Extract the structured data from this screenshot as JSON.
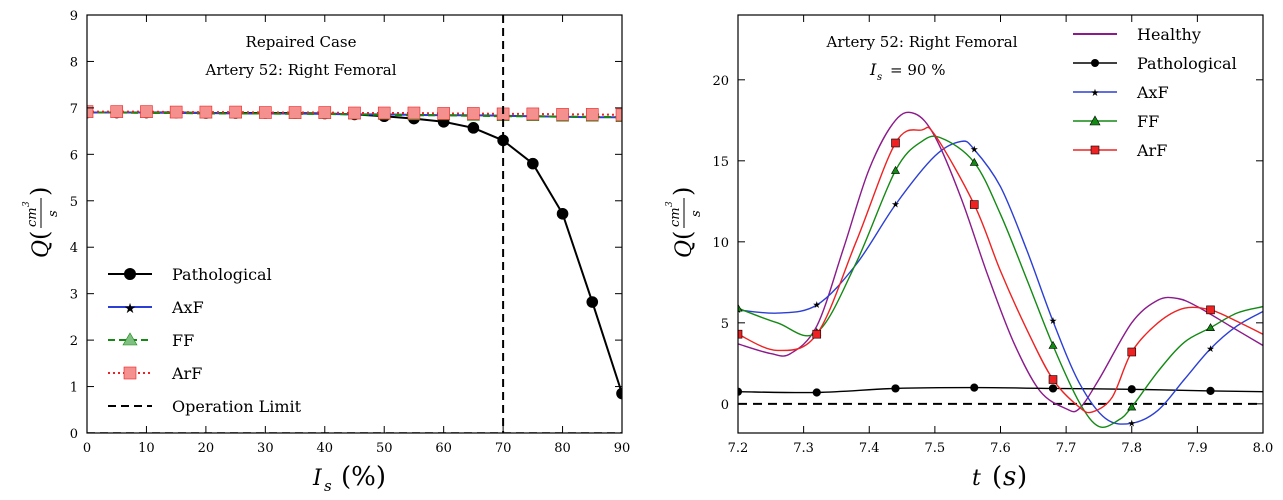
{
  "chart_data": [
    {
      "type": "line",
      "annotation": [
        "Repaired Case",
        "Artery 52: Right Femoral"
      ],
      "xlabel": "I_s (%)",
      "ylabel": "Q (cm^3/s)",
      "xlim": [
        0,
        90
      ],
      "ylim": [
        0,
        9
      ],
      "x_ticks": [
        "0",
        "10",
        "20",
        "30",
        "40",
        "50",
        "60",
        "70",
        "80",
        "90"
      ],
      "y_ticks": [
        "0",
        "1",
        "2",
        "3",
        "4",
        "5",
        "6",
        "7",
        "8",
        "9"
      ],
      "grid": false,
      "legend_position": "lower-left",
      "x": [
        0,
        5,
        10,
        15,
        20,
        25,
        30,
        35,
        40,
        45,
        50,
        55,
        60,
        65,
        70,
        75,
        80,
        85,
        90
      ],
      "series": [
        {
          "name": "Pathological",
          "color": "#000000",
          "marker": "circle",
          "linestyle": "solid",
          "values": [
            6.9,
            6.9,
            6.9,
            6.9,
            6.89,
            6.89,
            6.89,
            6.89,
            6.88,
            6.86,
            6.82,
            6.77,
            6.7,
            6.57,
            6.3,
            5.8,
            4.72,
            2.82,
            0.85
          ]
        },
        {
          "name": "AxF",
          "color": "#2b3fd4",
          "marker": "star",
          "linestyle": "solid",
          "values": [
            6.9,
            6.9,
            6.9,
            6.89,
            6.89,
            6.88,
            6.88,
            6.88,
            6.87,
            6.86,
            6.86,
            6.85,
            6.84,
            6.84,
            6.83,
            6.82,
            6.81,
            6.8,
            6.8
          ]
        },
        {
          "name": "FF",
          "color": "#138a13",
          "marker": "triangle",
          "linestyle": "dashed",
          "values": [
            6.9,
            6.9,
            6.89,
            6.89,
            6.88,
            6.88,
            6.88,
            6.87,
            6.87,
            6.86,
            6.85,
            6.84,
            6.84,
            6.83,
            6.82,
            6.82,
            6.81,
            6.81,
            6.8
          ]
        },
        {
          "name": "ArF",
          "color": "#ee2222",
          "marker": "square",
          "linestyle": "dotted",
          "values": [
            6.92,
            6.92,
            6.92,
            6.91,
            6.91,
            6.91,
            6.9,
            6.9,
            6.9,
            6.89,
            6.89,
            6.89,
            6.88,
            6.88,
            6.87,
            6.87,
            6.86,
            6.86,
            6.85
          ]
        },
        {
          "name": "Operation Limit",
          "color": "#000000",
          "linestyle": "dashed",
          "vertical_line_x": 70
        }
      ],
      "horizontal_line_y": 0
    },
    {
      "type": "line",
      "annotation": [
        "Artery 52: Right Femoral",
        "I_s = 90 %"
      ],
      "xlabel": "t (s)",
      "ylabel": "Q (cm^3/s)",
      "xlim": [
        7.2,
        8.0
      ],
      "ylim": [
        -1.8,
        24
      ],
      "x_ticks": [
        "7.2",
        "7.3",
        "7.4",
        "7.5",
        "7.6",
        "7.7",
        "7.8",
        "7.9",
        "8.0"
      ],
      "y_ticks": [
        "0",
        "5",
        "10",
        "15",
        "20"
      ],
      "grid": false,
      "legend_position": "top-right",
      "horizontal_line_y": 0,
      "series": [
        {
          "name": "Healthy",
          "color": "#8b1a8b",
          "marker": "none",
          "x": [
            7.2,
            7.25,
            7.28,
            7.32,
            7.36,
            7.4,
            7.44,
            7.47,
            7.5,
            7.54,
            7.58,
            7.62,
            7.66,
            7.7,
            7.72,
            7.75,
            7.8,
            7.84,
            7.87,
            7.9,
            7.95,
            8.0
          ],
          "values": [
            3.7,
            3.1,
            3.1,
            4.8,
            9.5,
            14.5,
            17.5,
            17.9,
            16.5,
            12.7,
            8.0,
            3.8,
            0.8,
            -0.3,
            -0.3,
            1.5,
            5.0,
            6.4,
            6.5,
            6.0,
            4.8,
            3.6
          ]
        },
        {
          "name": "Pathological",
          "color": "#000000",
          "marker": "circle",
          "x": [
            7.2,
            7.32,
            7.44,
            7.56,
            7.68,
            7.8,
            7.92,
            8.0
          ],
          "values": [
            0.75,
            0.7,
            0.95,
            1.0,
            0.95,
            0.9,
            0.8,
            0.75
          ]
        },
        {
          "name": "AxF",
          "color": "#2b3fd4",
          "marker": "star",
          "x": [
            7.2,
            7.26,
            7.32,
            7.38,
            7.44,
            7.5,
            7.54,
            7.56,
            7.6,
            7.64,
            7.68,
            7.72,
            7.76,
            7.8,
            7.84,
            7.88,
            7.92,
            7.96,
            8.0
          ],
          "values": [
            5.8,
            5.6,
            6.1,
            8.6,
            12.3,
            15.3,
            16.2,
            15.7,
            13.4,
            9.5,
            5.1,
            1.3,
            -0.9,
            -1.2,
            -0.4,
            1.5,
            3.4,
            4.8,
            5.7
          ]
        },
        {
          "name": "FF",
          "color": "#138a13",
          "marker": "triangle",
          "x": [
            7.2,
            7.26,
            7.32,
            7.38,
            7.44,
            7.48,
            7.51,
            7.56,
            7.6,
            7.64,
            7.68,
            7.72,
            7.75,
            7.78,
            7.8,
            7.84,
            7.88,
            7.92,
            7.96,
            8.0
          ],
          "values": [
            5.9,
            5.0,
            4.4,
            8.7,
            14.4,
            16.2,
            16.4,
            14.9,
            11.7,
            7.7,
            3.6,
            0.1,
            -1.4,
            -1.0,
            -0.2,
            2.0,
            3.8,
            4.7,
            5.6,
            6.0
          ]
        },
        {
          "name": "ArF",
          "color": "#ee2222",
          "marker": "square",
          "x": [
            7.2,
            7.26,
            7.32,
            7.38,
            7.44,
            7.48,
            7.5,
            7.56,
            7.6,
            7.64,
            7.68,
            7.72,
            7.74,
            7.77,
            7.8,
            7.84,
            7.88,
            7.92,
            7.96,
            8.0
          ],
          "values": [
            4.3,
            3.3,
            4.3,
            10.0,
            16.1,
            16.9,
            16.6,
            12.3,
            8.2,
            4.6,
            1.5,
            -0.2,
            -0.5,
            0.4,
            3.2,
            5.0,
            5.9,
            5.8,
            5.1,
            4.3
          ]
        }
      ]
    }
  ]
}
